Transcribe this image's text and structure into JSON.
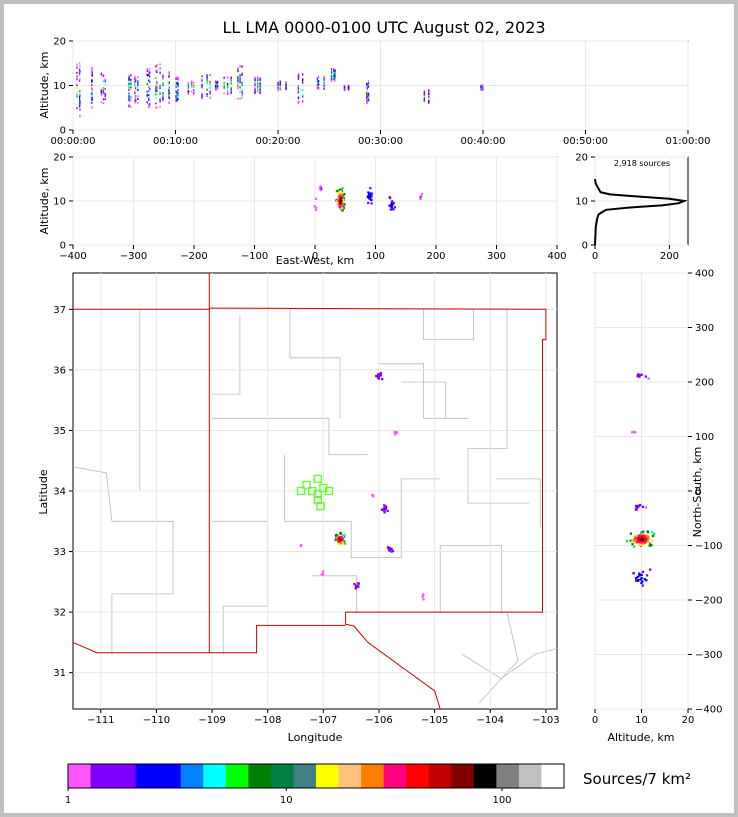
{
  "title": "LL LMA 0000-0100 UTC August 02, 2023",
  "colorbar": {
    "label": "Sources/7 km²",
    "ticks": [
      "1",
      "10",
      "100"
    ],
    "colors": [
      "#ff55ff",
      "#8000ff",
      "#8000ff",
      "#0000ff",
      "#0000ff",
      "#0080ff",
      "#00ffff",
      "#00ff00",
      "#008000",
      "#008040",
      "#408080",
      "#ffff00",
      "#ffc080",
      "#ff8000",
      "#ff0080",
      "#ff0000",
      "#c00000",
      "#800000",
      "#000000",
      "#808080",
      "#c0c0c0",
      "#ffffff"
    ]
  },
  "chart_data": [
    {
      "type": "scatter",
      "name": "time-height",
      "ylabel": "Altitude, km",
      "xlim": [
        "00:00:00",
        "01:00:00"
      ],
      "ylim": [
        0,
        20
      ],
      "xticks": [
        "00:00:00",
        "00:10:00",
        "00:20:00",
        "00:30:00",
        "00:40:00",
        "00:50:00",
        "01:00:00"
      ],
      "yticks": [
        "0",
        "10",
        "20"
      ],
      "clusters": [
        {
          "t": 0.5,
          "alt_lo": 3,
          "alt_hi": 15
        },
        {
          "t": 1.8,
          "alt_lo": 5,
          "alt_hi": 14
        },
        {
          "t": 2.7,
          "alt_lo": 6,
          "alt_hi": 13
        },
        {
          "t": 5.2,
          "alt_lo": 5,
          "alt_hi": 13
        },
        {
          "t": 5.9,
          "alt_lo": 6,
          "alt_hi": 12
        },
        {
          "t": 7.2,
          "alt_lo": 5,
          "alt_hi": 14
        },
        {
          "t": 8.4,
          "alt_lo": 5,
          "alt_hi": 15
        },
        {
          "t": 9.2,
          "alt_lo": 6,
          "alt_hi": 13
        },
        {
          "t": 9.9,
          "alt_lo": 6,
          "alt_hi": 12
        },
        {
          "t": 11.7,
          "alt_lo": 8,
          "alt_hi": 11
        },
        {
          "t": 13.0,
          "alt_lo": 7,
          "alt_hi": 13
        },
        {
          "t": 14.2,
          "alt_lo": 9,
          "alt_hi": 11
        },
        {
          "t": 15.0,
          "alt_lo": 8,
          "alt_hi": 12
        },
        {
          "t": 16.2,
          "alt_lo": 7,
          "alt_hi": 15
        },
        {
          "t": 18.2,
          "alt_lo": 8,
          "alt_hi": 12
        },
        {
          "t": 20.4,
          "alt_lo": 9,
          "alt_hi": 11
        },
        {
          "t": 22.3,
          "alt_lo": 6,
          "alt_hi": 13
        },
        {
          "t": 24.1,
          "alt_lo": 9,
          "alt_hi": 12
        },
        {
          "t": 25.3,
          "alt_lo": 11,
          "alt_hi": 14
        },
        {
          "t": 26.7,
          "alt_lo": 9,
          "alt_hi": 10
        },
        {
          "t": 29.0,
          "alt_lo": 6,
          "alt_hi": 11
        },
        {
          "t": 34.6,
          "alt_lo": 6,
          "alt_hi": 9
        },
        {
          "t": 40.0,
          "alt_lo": 9,
          "alt_hi": 10
        }
      ]
    },
    {
      "type": "scatter",
      "name": "east-west-height",
      "xlabel": "East-West, km",
      "ylabel": "Altitude, km",
      "xlim": [
        -400,
        400
      ],
      "ylim": [
        0,
        20
      ],
      "xticks": [
        "−400",
        "−300",
        "−200",
        "−100",
        "0",
        "100",
        "200",
        "300",
        "400"
      ],
      "yticks": [
        "0",
        "10",
        "20"
      ],
      "clusters": [
        {
          "x": 42,
          "alt": 10,
          "sx": 6,
          "sa": 2.5,
          "n": 90
        },
        {
          "x": 90,
          "alt": 11,
          "sx": 4,
          "sa": 1.5,
          "n": 25
        },
        {
          "x": 126,
          "alt": 9,
          "sx": 5,
          "sa": 1.5,
          "n": 20
        },
        {
          "x": 10,
          "alt": 13,
          "sx": 2,
          "sa": 1,
          "n": 6
        },
        {
          "x": 175,
          "alt": 11,
          "sx": 6,
          "sa": 1,
          "n": 5
        },
        {
          "x": 0,
          "alt": 9,
          "sx": 3,
          "sa": 2,
          "n": 4
        }
      ]
    },
    {
      "type": "line",
      "name": "altitude-histogram",
      "annotation": "2,918 sources",
      "xlim": [
        0,
        250
      ],
      "ylim": [
        0,
        20
      ],
      "xticks": [
        "0",
        "200"
      ],
      "yticks": [
        "0",
        "10",
        "20"
      ],
      "points": [
        [
          0,
          0
        ],
        [
          2,
          4
        ],
        [
          6,
          6
        ],
        [
          10,
          7
        ],
        [
          30,
          8
        ],
        [
          90,
          8.5
        ],
        [
          180,
          9
        ],
        [
          225,
          9.5
        ],
        [
          240,
          10
        ],
        [
          200,
          10.5
        ],
        [
          120,
          11
        ],
        [
          40,
          11.5
        ],
        [
          15,
          12
        ],
        [
          8,
          13
        ],
        [
          2,
          14
        ],
        [
          0,
          15
        ]
      ]
    },
    {
      "type": "scatter",
      "name": "plan-view",
      "xlabel": "Longitude",
      "ylabel": "Latitude",
      "xlim": [
        -111.5,
        -102.8
      ],
      "ylim": [
        30.4,
        37.6
      ],
      "xticks": [
        "−111",
        "−110",
        "−109",
        "−108",
        "−107",
        "−106",
        "−105",
        "−104",
        "−103"
      ],
      "yticks": [
        "31",
        "32",
        "33",
        "34",
        "35",
        "36",
        "37"
      ],
      "stations": [
        [
          -107.1,
          34.2
        ],
        [
          -107.3,
          34.1
        ],
        [
          -107.0,
          34.05
        ],
        [
          -107.4,
          34.0
        ],
        [
          -107.2,
          34.0
        ],
        [
          -107.1,
          33.95
        ],
        [
          -106.9,
          34.0
        ],
        [
          -107.1,
          33.85
        ],
        [
          -107.05,
          33.75
        ]
      ],
      "clusters": [
        {
          "lon": -106.7,
          "lat": 33.2,
          "s": 0.08,
          "n": 70
        },
        {
          "lon": -106.0,
          "lat": 35.9,
          "s": 0.05,
          "n": 12
        },
        {
          "lon": -105.9,
          "lat": 33.7,
          "s": 0.06,
          "n": 12
        },
        {
          "lon": -105.8,
          "lat": 33.05,
          "s": 0.05,
          "n": 10
        },
        {
          "lon": -106.4,
          "lat": 32.45,
          "s": 0.05,
          "n": 10
        },
        {
          "lon": -107.4,
          "lat": 33.1,
          "s": 0.02,
          "n": 2
        },
        {
          "lon": -107.0,
          "lat": 32.65,
          "s": 0.03,
          "n": 4
        },
        {
          "lon": -105.7,
          "lat": 34.95,
          "s": 0.03,
          "n": 4
        },
        {
          "lon": -105.2,
          "lat": 32.25,
          "s": 0.04,
          "n": 4
        },
        {
          "lon": -106.1,
          "lat": 33.9,
          "s": 0.03,
          "n": 3
        }
      ]
    },
    {
      "type": "scatter",
      "name": "height-north-south",
      "xlabel": "Altitude, km",
      "ylabel": "North-South, km",
      "xlim": [
        0,
        20
      ],
      "ylim": [
        -400,
        400
      ],
      "xticks": [
        "0",
        "10",
        "20"
      ],
      "yticks": [
        "−400",
        "−300",
        "−200",
        "−100",
        "0",
        "100",
        "200",
        "300",
        "400"
      ],
      "clusters": [
        {
          "alt": 10,
          "ns": -88,
          "sa": 2.5,
          "sn": 12,
          "n": 90
        },
        {
          "alt": 10,
          "ns": -160,
          "sa": 2,
          "sn": 15,
          "n": 20
        },
        {
          "alt": 9,
          "ns": -30,
          "sa": 1.5,
          "sn": 6,
          "n": 10
        },
        {
          "alt": 10,
          "ns": 212,
          "sa": 2,
          "sn": 6,
          "n": 8
        },
        {
          "alt": 8,
          "ns": 108,
          "sa": 2,
          "sn": 2,
          "n": 3
        }
      ]
    }
  ]
}
